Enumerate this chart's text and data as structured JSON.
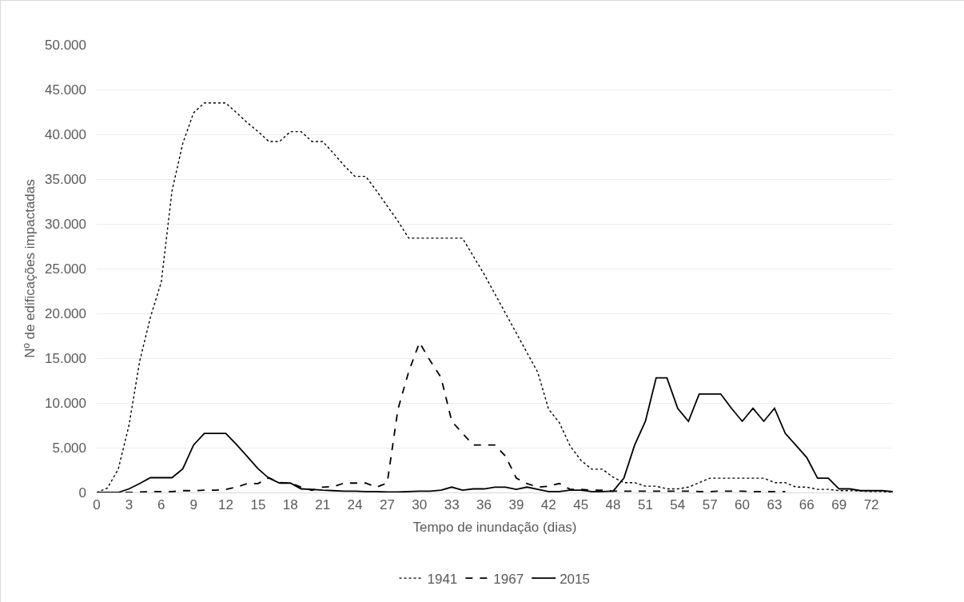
{
  "chart_data": {
    "type": "line",
    "xlabel": "Tempo de inundação (dias)",
    "ylabel": "Nº de edificações impactadas",
    "x": [
      0,
      1,
      2,
      3,
      4,
      5,
      6,
      7,
      8,
      9,
      10,
      11,
      12,
      13,
      14,
      15,
      16,
      17,
      18,
      19,
      20,
      21,
      22,
      23,
      24,
      25,
      26,
      27,
      28,
      29,
      30,
      31,
      32,
      33,
      34,
      35,
      36,
      37,
      38,
      39,
      40,
      41,
      42,
      43,
      44,
      45,
      46,
      47,
      48,
      49,
      50,
      51,
      52,
      53,
      54,
      55,
      56,
      57,
      58,
      59,
      60,
      61,
      62,
      63,
      64,
      65,
      66,
      67,
      68,
      69,
      70,
      71,
      72,
      73,
      74
    ],
    "series": [
      {
        "name": "1941",
        "color": "#000000",
        "line_style": "dotted",
        "values": [
          0,
          500,
          2600,
          7500,
          14700,
          19600,
          23500,
          33700,
          39000,
          42400,
          43500,
          43500,
          43500,
          42400,
          41300,
          40300,
          39200,
          39200,
          40300,
          40300,
          39200,
          39200,
          37900,
          36500,
          35300,
          35300,
          33700,
          32000,
          30300,
          28400,
          28400,
          28400,
          28400,
          28400,
          28400,
          26400,
          24400,
          22200,
          20000,
          17800,
          15600,
          13400,
          9300,
          7800,
          5200,
          3600,
          2600,
          2600,
          1700,
          1100,
          1100,
          700,
          700,
          400,
          400,
          600,
          1100,
          1600,
          1600,
          1600,
          1600,
          1600,
          1600,
          1100,
          1100,
          600,
          600,
          350,
          350,
          200,
          200,
          150,
          100,
          100,
          50
        ]
      },
      {
        "name": "1967",
        "color": "#000000",
        "line_style": "dashed",
        "values": [
          0,
          0,
          0,
          0,
          50,
          100,
          100,
          100,
          200,
          200,
          250,
          250,
          350,
          600,
          1000,
          1000,
          1650,
          1100,
          1050,
          600,
          250,
          600,
          650,
          1050,
          1050,
          1050,
          600,
          1050,
          9300,
          13500,
          16750,
          14700,
          12850,
          7950,
          6600,
          5300,
          5300,
          5300,
          4050,
          1600,
          1000,
          600,
          700,
          1000,
          350,
          350,
          250,
          250,
          150,
          150,
          150,
          150,
          150,
          150,
          150,
          150,
          100,
          100,
          150,
          150,
          150,
          100,
          100,
          100,
          100,
          null,
          null,
          null,
          null,
          null,
          null,
          null,
          null,
          null,
          null
        ]
      },
      {
        "name": "2015",
        "color": "#000000",
        "line_style": "solid",
        "values": [
          0,
          0,
          0,
          400,
          1000,
          1650,
          1650,
          1650,
          2640,
          5300,
          6600,
          6600,
          6600,
          5350,
          4000,
          2640,
          1600,
          1050,
          1050,
          400,
          350,
          250,
          200,
          150,
          150,
          100,
          100,
          50,
          50,
          100,
          150,
          150,
          250,
          600,
          250,
          400,
          400,
          600,
          600,
          350,
          600,
          350,
          100,
          100,
          250,
          250,
          100,
          100,
          150,
          1600,
          5300,
          7950,
          12800,
          12800,
          9400,
          7950,
          11000,
          11000,
          11000,
          9400,
          7950,
          9400,
          7950,
          9400,
          6600,
          5250,
          3900,
          1600,
          1600,
          400,
          400,
          200,
          200,
          200,
          100
        ]
      }
    ],
    "xlim": [
      0,
      74
    ],
    "xticks": [
      0,
      3,
      6,
      9,
      12,
      15,
      18,
      21,
      24,
      27,
      30,
      33,
      36,
      39,
      42,
      45,
      48,
      51,
      54,
      57,
      60,
      63,
      66,
      69,
      72
    ],
    "ylim": [
      0,
      50000
    ],
    "yticks": [
      {
        "value": 0,
        "label": "0"
      },
      {
        "value": 5000,
        "label": "5.000"
      },
      {
        "value": 10000,
        "label": "10.000"
      },
      {
        "value": 15000,
        "label": "15.000"
      },
      {
        "value": 20000,
        "label": "20.000"
      },
      {
        "value": 25000,
        "label": "25.000"
      },
      {
        "value": 30000,
        "label": "30.000"
      },
      {
        "value": 35000,
        "label": "35.000"
      },
      {
        "value": 40000,
        "label": "40.000"
      },
      {
        "value": 45000,
        "label": "45.000"
      },
      {
        "value": 50000,
        "label": "50.000"
      }
    ],
    "grid": "y",
    "legend": "bottom",
    "marker": "none"
  }
}
